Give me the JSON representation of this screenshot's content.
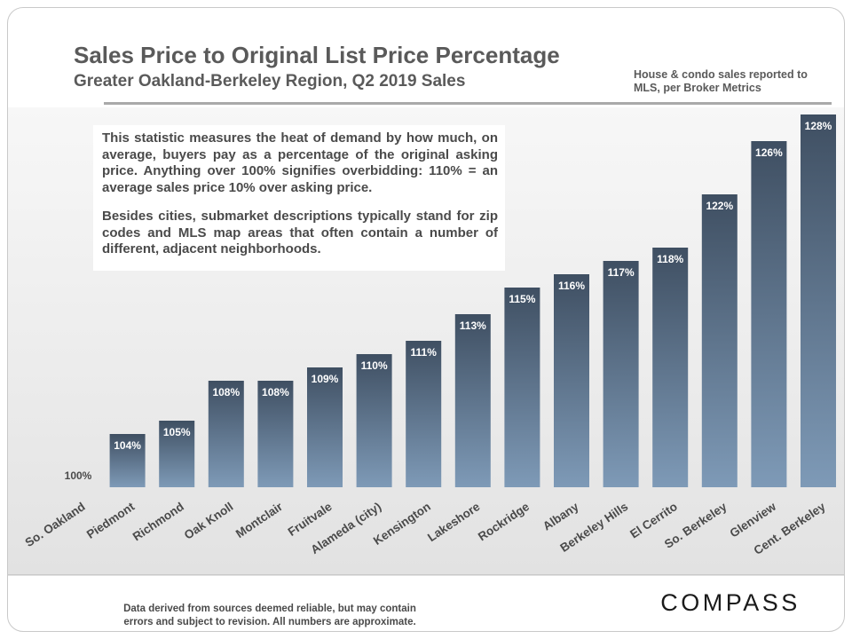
{
  "header": {
    "title": "Sales Price to Original List Price Percentage",
    "subtitle": "Greater Oakland-Berkeley Region, Q2 2019 Sales",
    "source_note": "House & condo sales reported to MLS, per Broker Metrics"
  },
  "info_box": {
    "paragraph_1": "This statistic measures the heat of demand by how much, on average, buyers pay as a percentage of the original asking price. Anything over 100% signifies overbidding: 110% = an average sales price 10% over asking price.",
    "paragraph_2": "Besides cities, submarket descriptions typically stand for zip codes and MLS map areas that often contain a number of different, adjacent neighborhoods."
  },
  "footer": {
    "disclaimer": "Data derived from sources deemed reliable, but may contain errors and subject to revision.  All numbers are approximate.",
    "logo_text": "COMPASS"
  },
  "colors": {
    "bar_top": "#3f4f62",
    "bar_bottom": "#7e9ab7",
    "label_text": "#ffffff",
    "axis_text": "#4a4a4a"
  },
  "chart_data": {
    "type": "bar",
    "categories": [
      "So. Oakland",
      "Piedmont",
      "Richmond",
      "Oak Knoll",
      "Montclair",
      "Fruitvale",
      "Alameda (city)",
      "Kensington",
      "Lakeshore",
      "Rockridge",
      "Albany",
      "Berkeley Hills",
      "El Cerrito",
      "So. Berkeley",
      "Glenview",
      "Cent. Berkeley"
    ],
    "values": [
      100,
      104,
      105,
      108,
      108,
      109,
      110,
      111,
      113,
      115,
      116,
      117,
      118,
      122,
      126,
      128
    ],
    "data_labels": [
      "100%",
      "104%",
      "105%",
      "108%",
      "108%",
      "109%",
      "110%",
      "111%",
      "113%",
      "115%",
      "116%",
      "117%",
      "118%",
      "122%",
      "126%",
      "128%"
    ],
    "ylim": [
      100,
      128
    ],
    "grid": false,
    "legend": "none"
  }
}
